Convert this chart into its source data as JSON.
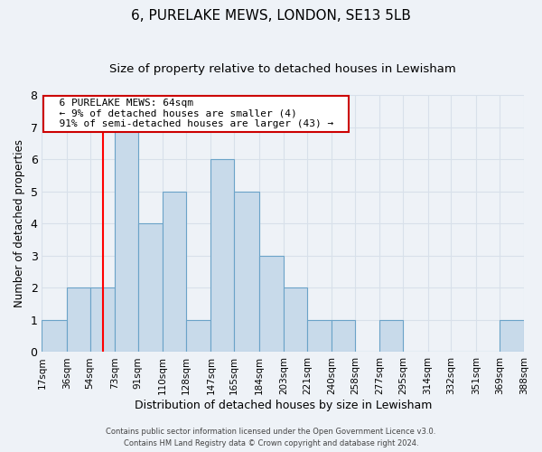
{
  "title": "6, PURELAKE MEWS, LONDON, SE13 5LB",
  "subtitle": "Size of property relative to detached houses in Lewisham",
  "xlabel": "Distribution of detached houses by size in Lewisham",
  "ylabel": "Number of detached properties",
  "bin_edges": [
    17,
    36,
    54,
    73,
    91,
    110,
    128,
    147,
    165,
    184,
    203,
    221,
    240,
    258,
    277,
    295,
    314,
    332,
    351,
    369,
    388
  ],
  "bar_heights": [
    1,
    2,
    2,
    7,
    4,
    5,
    1,
    6,
    5,
    3,
    2,
    1,
    1,
    0,
    1,
    0,
    0,
    0,
    0,
    1
  ],
  "bar_color": "#c8daea",
  "bar_edge_color": "#6ba3c8",
  "red_line_x": 64,
  "ylim": [
    0,
    8
  ],
  "yticks": [
    0,
    1,
    2,
    3,
    4,
    5,
    6,
    7,
    8
  ],
  "annotation_line1": "6 PURELAKE MEWS: 64sqm",
  "annotation_line2": "← 9% of detached houses are smaller (4)",
  "annotation_line3": "91% of semi-detached houses are larger (43) →",
  "annotation_box_color": "#ffffff",
  "annotation_box_edge": "#cc0000",
  "footer1": "Contains HM Land Registry data © Crown copyright and database right 2024.",
  "footer2": "Contains public sector information licensed under the Open Government Licence v3.0.",
  "background_color": "#eef2f7",
  "grid_color": "#d8e0ea",
  "title_fontsize": 11,
  "subtitle_fontsize": 9.5,
  "xlabel_fontsize": 9,
  "ylabel_fontsize": 8.5,
  "tick_label_fontsize": 7.5,
  "annotation_fontsize": 8,
  "footer_fontsize": 6
}
